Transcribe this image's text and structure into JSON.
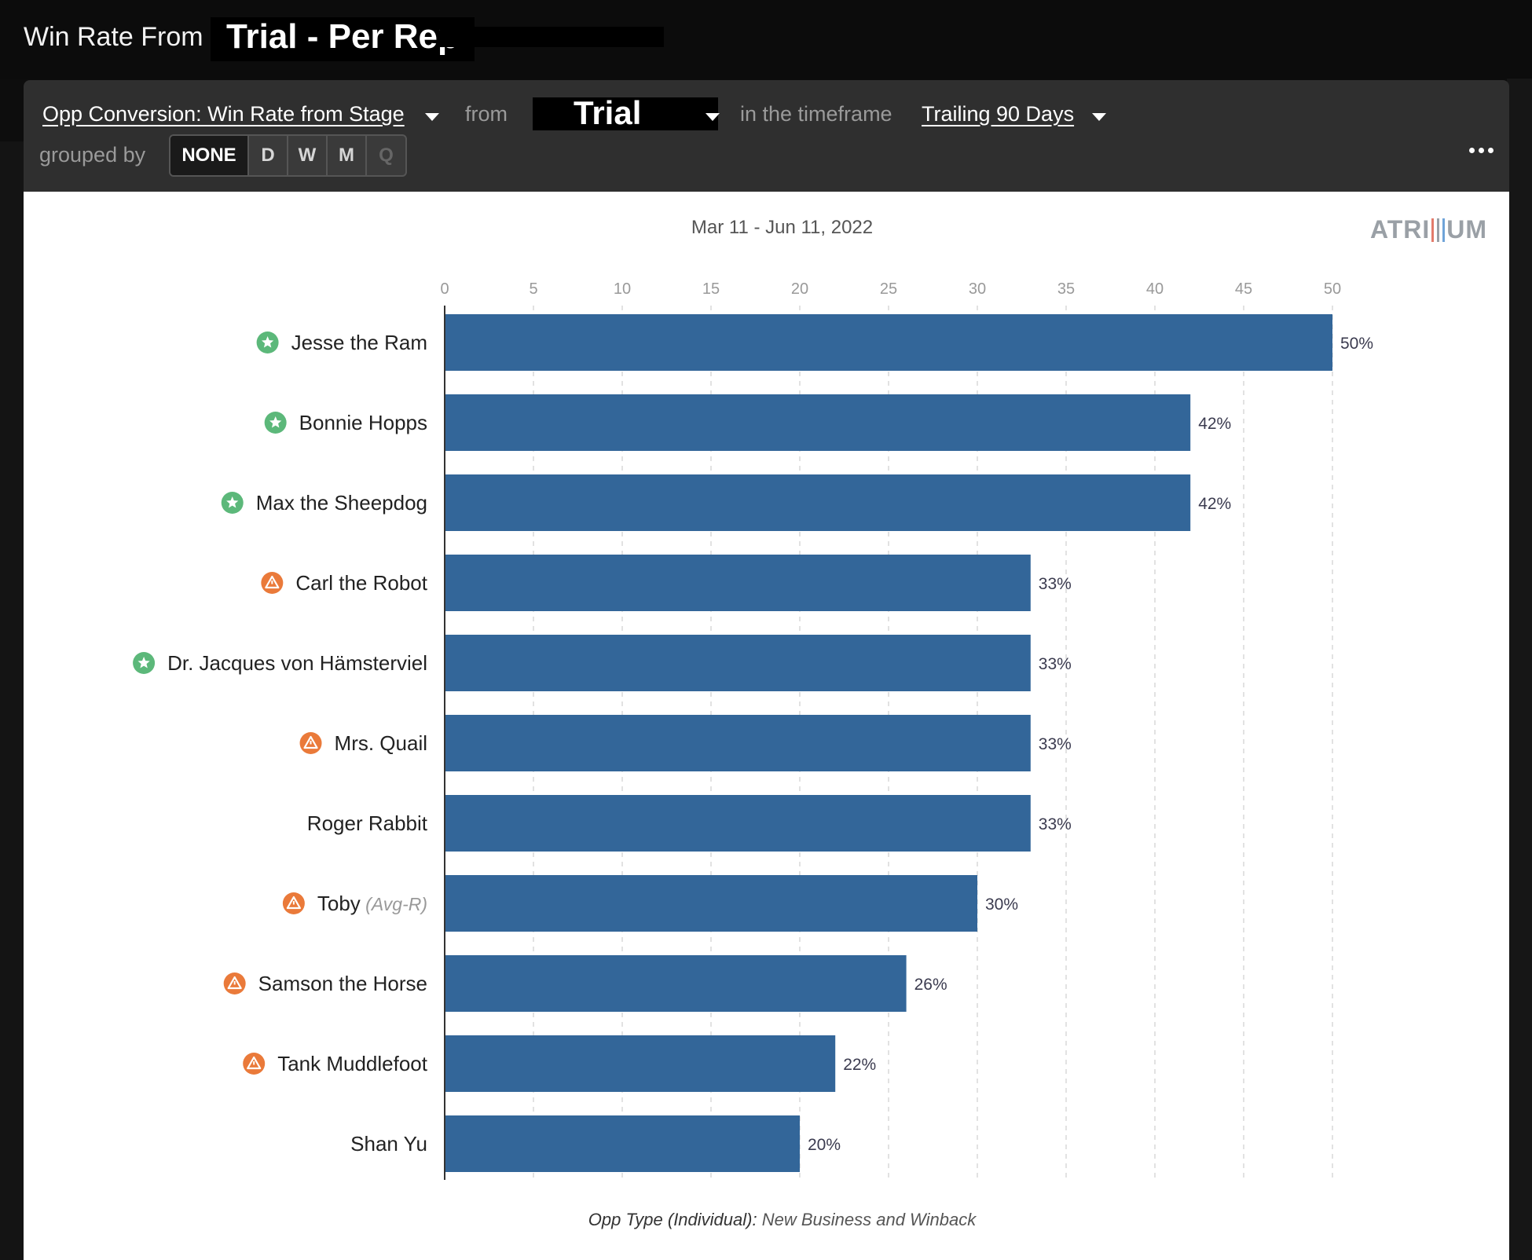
{
  "header": {
    "title_prefix": "Win Rate From",
    "title_main": "Trial - Per Rep"
  },
  "toolbar": {
    "metric_label": "Opp Conversion: Win Rate from Stage",
    "from_label": "from",
    "stage_label": "Trial",
    "timeframe_label": "in the timeframe",
    "timeframe_value": "Trailing 90 Days",
    "grouped_by_label": "grouped by",
    "group_options": [
      "NONE",
      "D",
      "W",
      "M",
      "Q"
    ],
    "group_selected": "NONE",
    "more_icon": "ellipsis-icon"
  },
  "chart": {
    "date_range": "Mar 11 - Jun 11, 2022",
    "logo_text": "ATRIUM",
    "footnote_key": "Opp Type (Individual):",
    "footnote_value": "New Business and Winback"
  },
  "colors": {
    "bar": "#336699",
    "star_badge": "#5cb87a",
    "warning_badge": "#ea7a3a",
    "logo_bars": [
      "#e27b6b",
      "#9aa0a6",
      "#6fa3d8"
    ]
  },
  "chart_data": {
    "type": "bar",
    "orientation": "horizontal",
    "categories": [
      "Jesse the Ram",
      "Bonnie Hopps",
      "Max the Sheepdog",
      "Carl the Robot",
      "Dr. Jacques von Hämsterviel",
      "Mrs. Quail",
      "Roger Rabbit",
      "Toby",
      "Samson the Horse",
      "Tank Muddlefoot",
      "Shan Yu"
    ],
    "category_notes": [
      "",
      "",
      "",
      "",
      "",
      "",
      "",
      "(Avg-R)",
      "",
      "",
      ""
    ],
    "category_icons": [
      "star-icon",
      "star-icon",
      "star-icon",
      "warning-icon",
      "star-icon",
      "warning-icon",
      "",
      "warning-icon",
      "warning-icon",
      "warning-icon",
      ""
    ],
    "values": [
      50,
      42,
      42,
      33,
      33,
      33,
      33,
      30,
      26,
      22,
      20
    ],
    "value_labels": [
      "50%",
      "42%",
      "42%",
      "33%",
      "33%",
      "33%",
      "33%",
      "30%",
      "26%",
      "22%",
      "20%"
    ],
    "xticks": [
      0,
      5,
      10,
      15,
      20,
      25,
      30,
      35,
      40,
      45,
      50
    ],
    "xlim": [
      0,
      50
    ],
    "grid": true,
    "title": "",
    "xlabel": "",
    "ylabel": ""
  }
}
